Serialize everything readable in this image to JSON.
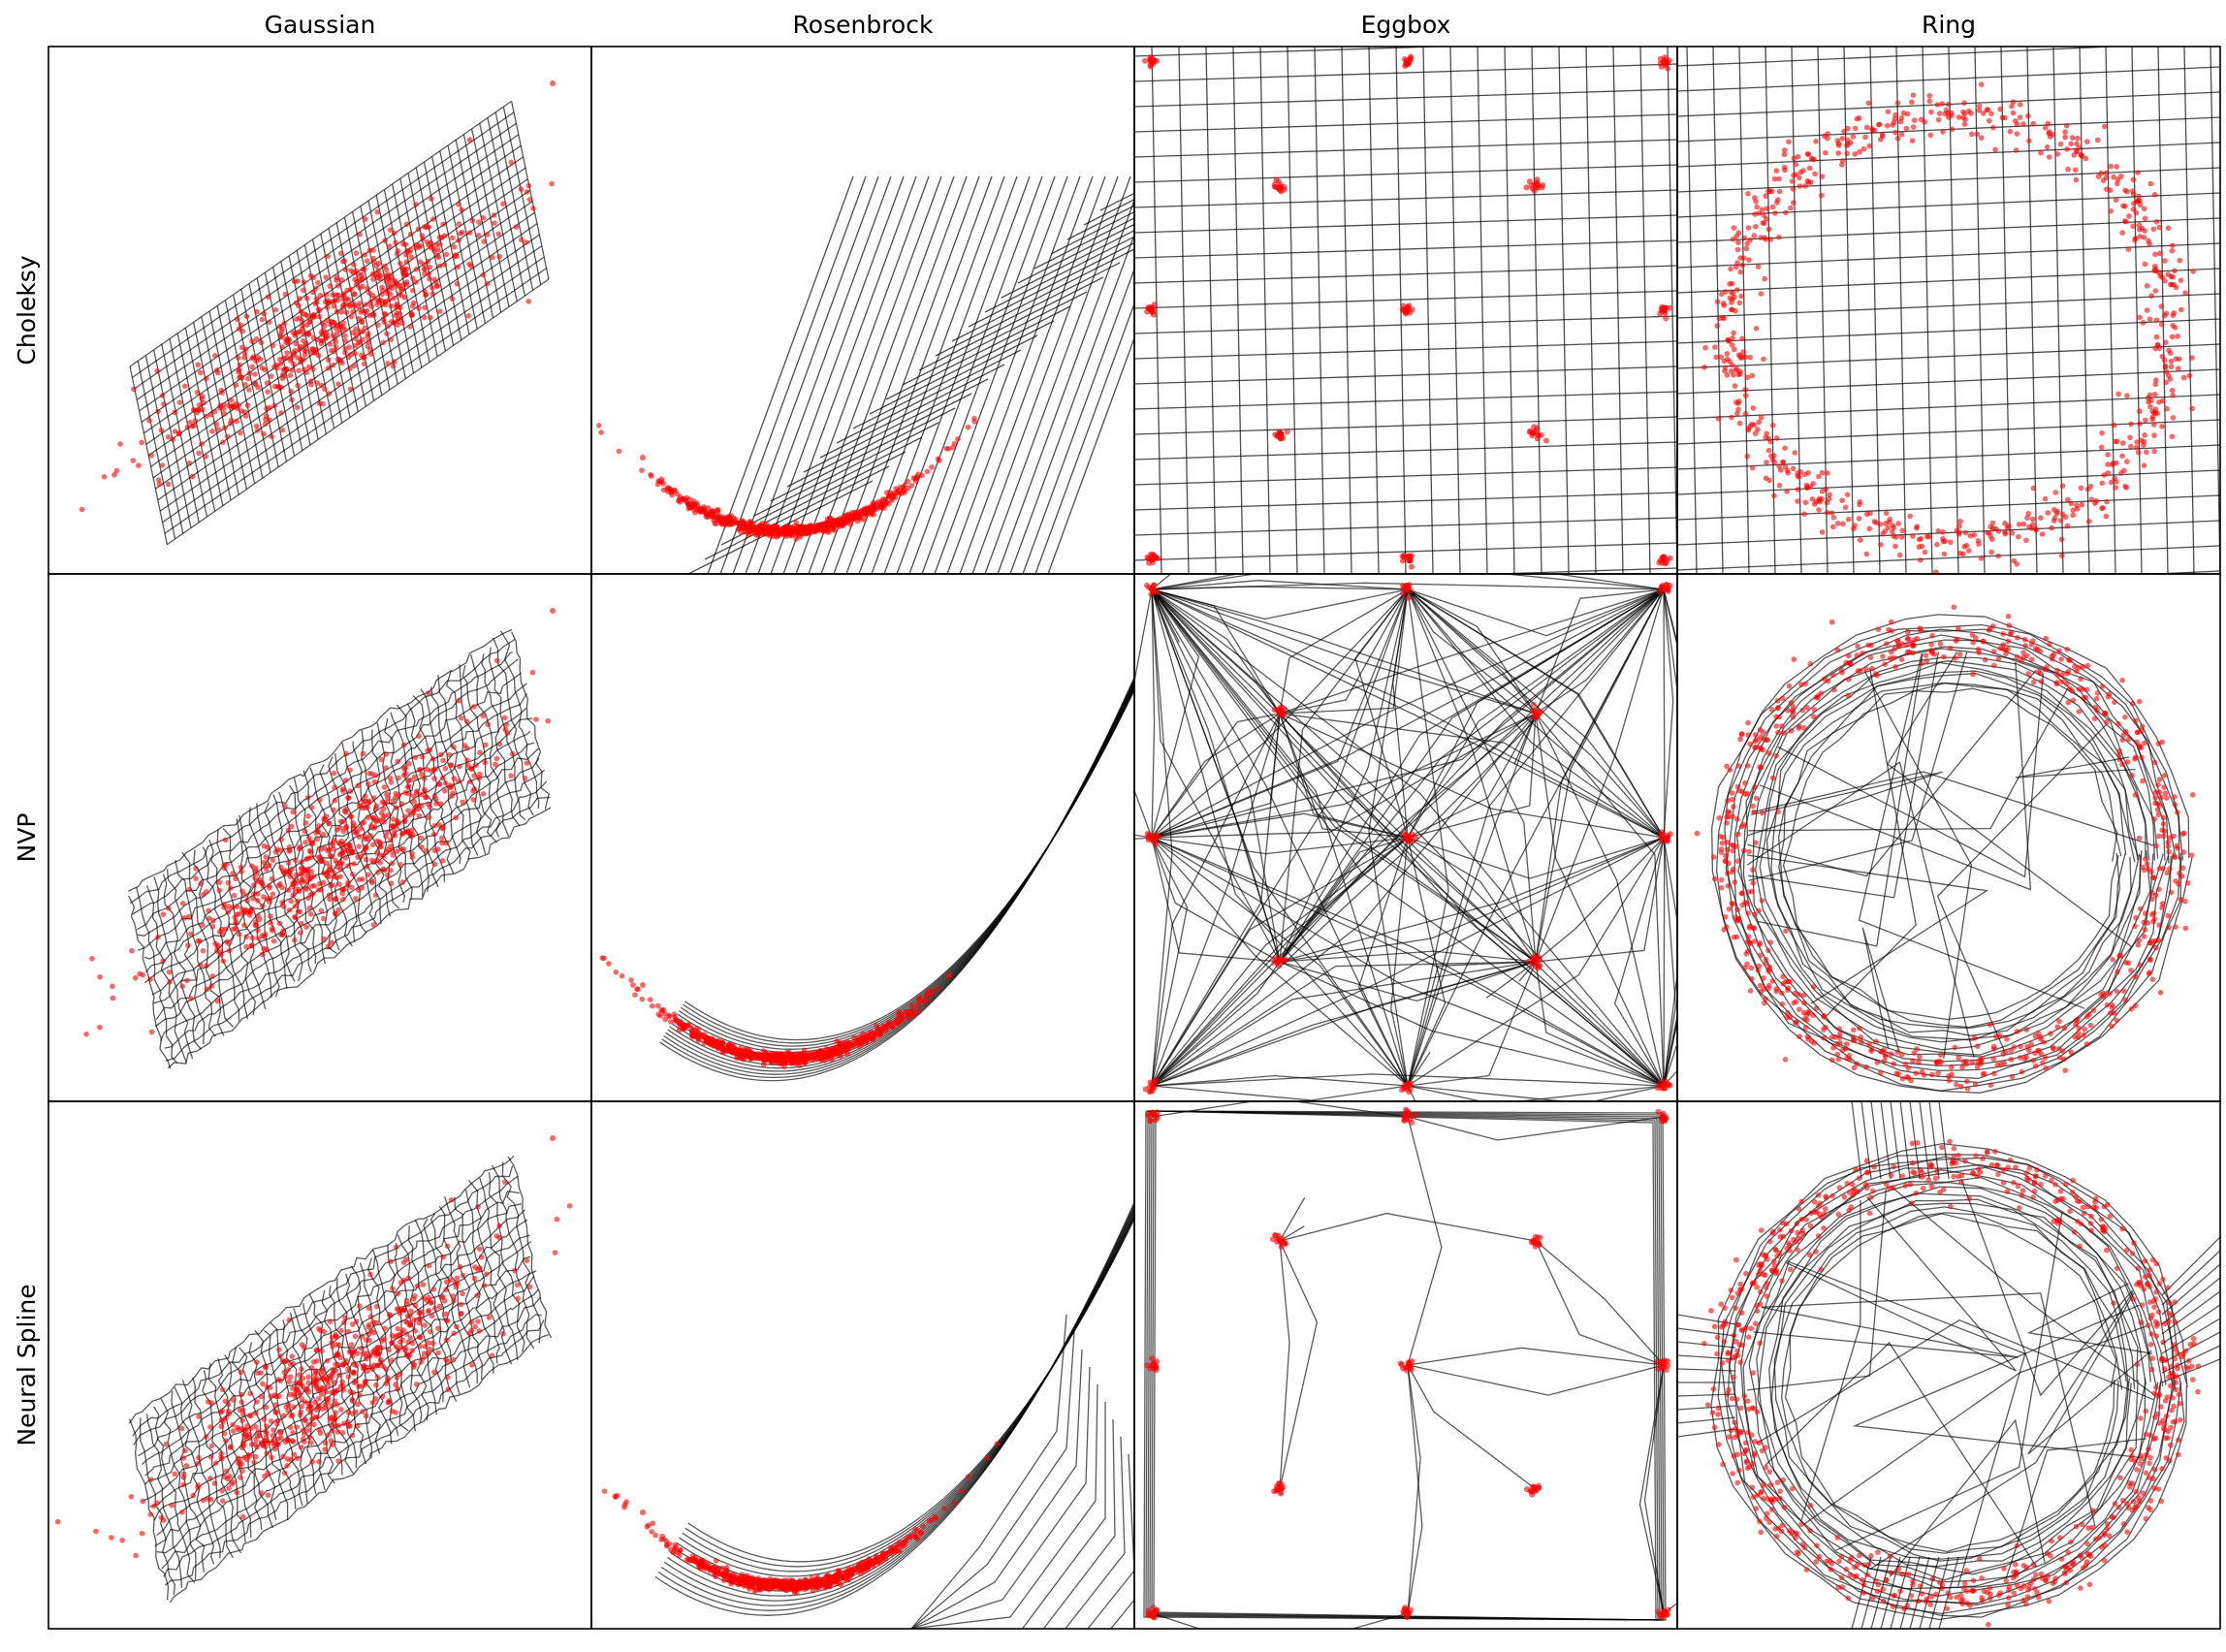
{
  "figure": {
    "columns": [
      "Gaussian",
      "Rosenbrock",
      "Eggbox",
      "Ring"
    ],
    "rows": [
      "Choleksy",
      "NVP",
      "Neural Spline"
    ]
  },
  "colors": {
    "points": "#ff0000",
    "grid_lines": "#000000",
    "frame": "#000000",
    "background": "#ffffff"
  },
  "chart_data": [
    {
      "type": "scatter",
      "row": "Choleksy",
      "column": "Gaussian",
      "points": "red samples",
      "overlay": "black deformed grid",
      "ticks": "none"
    },
    {
      "type": "scatter",
      "row": "Choleksy",
      "column": "Rosenbrock",
      "points": "red samples",
      "overlay": "black deformed grid",
      "ticks": "none"
    },
    {
      "type": "scatter",
      "row": "Choleksy",
      "column": "Eggbox",
      "points": "red samples",
      "overlay": "black deformed grid",
      "ticks": "none"
    },
    {
      "type": "scatter",
      "row": "Choleksy",
      "column": "Ring",
      "points": "red samples",
      "overlay": "black deformed grid",
      "ticks": "none"
    },
    {
      "type": "scatter",
      "row": "NVP",
      "column": "Gaussian",
      "points": "red samples",
      "overlay": "black deformed grid",
      "ticks": "none"
    },
    {
      "type": "scatter",
      "row": "NVP",
      "column": "Rosenbrock",
      "points": "red samples",
      "overlay": "black deformed grid",
      "ticks": "none"
    },
    {
      "type": "scatter",
      "row": "NVP",
      "column": "Eggbox",
      "points": "red samples",
      "overlay": "black deformed grid",
      "ticks": "none"
    },
    {
      "type": "scatter",
      "row": "NVP",
      "column": "Ring",
      "points": "red samples",
      "overlay": "black deformed grid",
      "ticks": "none"
    },
    {
      "type": "scatter",
      "row": "Neural Spline",
      "column": "Gaussian",
      "points": "red samples",
      "overlay": "black deformed grid",
      "ticks": "none"
    },
    {
      "type": "scatter",
      "row": "Neural Spline",
      "column": "Rosenbrock",
      "points": "red samples",
      "overlay": "black deformed grid",
      "ticks": "none"
    },
    {
      "type": "scatter",
      "row": "Neural Spline",
      "column": "Eggbox",
      "points": "red samples",
      "overlay": "black deformed grid",
      "ticks": "none"
    },
    {
      "type": "scatter",
      "row": "Neural Spline",
      "column": "Ring",
      "points": "red samples",
      "overlay": "black deformed grid",
      "ticks": "none"
    }
  ]
}
